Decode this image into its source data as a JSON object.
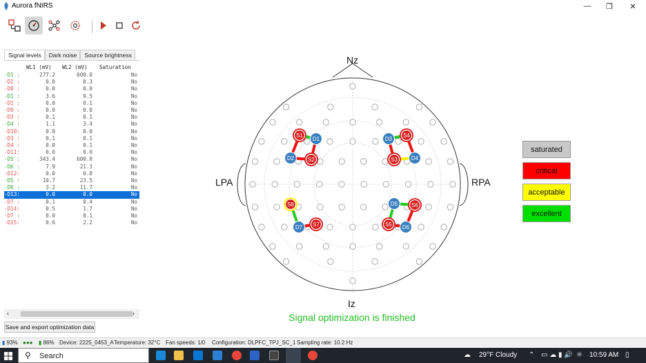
{
  "window": {
    "title": "Aurora fNIRS",
    "minimize_icon": "minimize-icon",
    "maximize_icon": "maximize-icon",
    "close_icon": "close-icon"
  },
  "toolbar": {
    "items": [
      {
        "name": "hardware-config-icon"
      },
      {
        "name": "signal-optimization-icon",
        "active": true
      },
      {
        "name": "montage-icon"
      },
      {
        "name": "settings-gear-icon"
      },
      {
        "name": "play-icon"
      },
      {
        "name": "stop-icon"
      },
      {
        "name": "refresh-icon"
      }
    ]
  },
  "tabs": [
    "Signal levels",
    "Dark noise",
    "Source brightness"
  ],
  "table": {
    "headers": [
      "",
      "WL1 (mV)",
      "WL2 (mV)",
      "Saturation"
    ],
    "rows": [
      {
        "ch": "-D1 :",
        "type": "det",
        "wl1": "277.2",
        "wl2": "600.0",
        "sat": "No"
      },
      {
        "ch": "-D2 :",
        "type": "src",
        "wl1": "0.0",
        "wl2": "0.3",
        "sat": "No"
      },
      {
        "ch": "-D8 :",
        "type": "src",
        "wl1": "0.0",
        "wl2": "0.0",
        "sat": "No"
      },
      {
        "ch": "-D1 :",
        "type": "det",
        "wl1": "3.6",
        "wl2": "9.5",
        "sat": "No"
      },
      {
        "ch": "-D2 :",
        "type": "src",
        "wl1": "0.0",
        "wl2": "0.1",
        "sat": "No"
      },
      {
        "ch": "-D9 :",
        "type": "src",
        "wl1": "0.0",
        "wl2": "0.0",
        "sat": "No"
      },
      {
        "ch": "-D3 :",
        "type": "src",
        "wl1": "0.1",
        "wl2": "0.1",
        "sat": "No"
      },
      {
        "ch": "-D4 :",
        "type": "det",
        "wl1": "1.1",
        "wl2": "3.4",
        "sat": "No"
      },
      {
        "ch": "-D10:",
        "type": "src",
        "wl1": "0.0",
        "wl2": "0.0",
        "sat": "No"
      },
      {
        "ch": "-D3 :",
        "type": "src",
        "wl1": "0.1",
        "wl2": "0.1",
        "sat": "No"
      },
      {
        "ch": "-D4 :",
        "type": "src",
        "wl1": "0.0",
        "wl2": "0.1",
        "sat": "No"
      },
      {
        "ch": "-D11:",
        "type": "src",
        "wl1": "0.0",
        "wl2": "0.0",
        "sat": "No"
      },
      {
        "ch": "-D5 :",
        "type": "det",
        "wl1": "343.4",
        "wl2": "600.0",
        "sat": "No"
      },
      {
        "ch": "-D6 :",
        "type": "det",
        "wl1": "7.9",
        "wl2": "21.3",
        "sat": "No"
      },
      {
        "ch": "-D12:",
        "type": "src",
        "wl1": "0.0",
        "wl2": "0.0",
        "sat": "No"
      },
      {
        "ch": "-D5 :",
        "type": "det",
        "wl1": "10.7",
        "wl2": "23.5",
        "sat": "No"
      },
      {
        "ch": "-D6 :",
        "type": "det",
        "wl1": "3.2",
        "wl2": "11.7",
        "sat": "No"
      },
      {
        "ch": "-D13:",
        "type": "src",
        "wl1": "0.0",
        "wl2": "0.0",
        "sat": "No",
        "selected": true
      },
      {
        "ch": "-D7 :",
        "type": "src",
        "wl1": "0.1",
        "wl2": "0.4",
        "sat": "No"
      },
      {
        "ch": "-D14:",
        "type": "src",
        "wl1": "0.5",
        "wl2": "1.7",
        "sat": "No"
      },
      {
        "ch": "-D7 :",
        "type": "src",
        "wl1": "0.0",
        "wl2": "0.1",
        "sat": "No"
      },
      {
        "ch": "-D15:",
        "type": "src",
        "wl1": "0.6",
        "wl2": "2.2",
        "sat": "No"
      }
    ]
  },
  "export_button": "Save and export optimization data",
  "headmap": {
    "landmarks": {
      "nz": "Nz",
      "iz": "Iz",
      "lpa": "LPA",
      "rpa": "RPA"
    },
    "sources": [
      "S1",
      "S2",
      "S3",
      "S4",
      "S5",
      "S6",
      "S7",
      "S8"
    ],
    "detectors": [
      "D1",
      "D2",
      "D3",
      "D4",
      "D5",
      "D6",
      "D7"
    ],
    "channels": [
      {
        "from": "S1",
        "to": "D1",
        "quality": "excellent"
      },
      {
        "from": "S1",
        "to": "D2",
        "quality": "critical"
      },
      {
        "from": "S2",
        "to": "D1",
        "quality": "critical"
      },
      {
        "from": "S2",
        "to": "D2",
        "quality": "critical"
      },
      {
        "from": "S3",
        "to": "D3",
        "quality": "critical"
      },
      {
        "from": "S3",
        "to": "D4",
        "quality": "acceptable"
      },
      {
        "from": "S4",
        "to": "D3",
        "quality": "excellent"
      },
      {
        "from": "S4",
        "to": "D4",
        "quality": "critical"
      },
      {
        "from": "S5",
        "to": "D5",
        "quality": "excellent"
      },
      {
        "from": "S5",
        "to": "D6",
        "quality": "critical"
      },
      {
        "from": "S6",
        "to": "D5",
        "quality": "excellent"
      },
      {
        "from": "S6",
        "to": "D6",
        "quality": "critical"
      },
      {
        "from": "S7",
        "to": "D7",
        "quality": "critical"
      },
      {
        "from": "S8",
        "to": "D7",
        "quality": "excellent"
      }
    ]
  },
  "status_message": "Signal optimization is finished",
  "legend": [
    {
      "label": "saturated",
      "color": "#c8c8c8"
    },
    {
      "label": "critical",
      "color": "#ff0000"
    },
    {
      "label": "acceptable",
      "color": "#ffff00"
    },
    {
      "label": "excellent",
      "color": "#00e000"
    }
  ],
  "colors": {
    "critical": "#ee1111",
    "acceptable": "#ffee00",
    "excellent": "#22cc22",
    "source": "#d81e1e",
    "detector": "#3a7fbf"
  },
  "statusbar": {
    "wifi": "93%",
    "battery": "86%",
    "device": "Device: 2225_0453_A",
    "temperature": "Temperature: 32°C",
    "fans": "Fan speeds: 1/0",
    "configuration": "Configuration: DLPFC_TPJ_SC_1",
    "sampling": "Sampling rate: 10.2 Hz"
  },
  "taskbar": {
    "search": "Search",
    "weather": "29°F Cloudy",
    "time": "10:59 AM"
  }
}
